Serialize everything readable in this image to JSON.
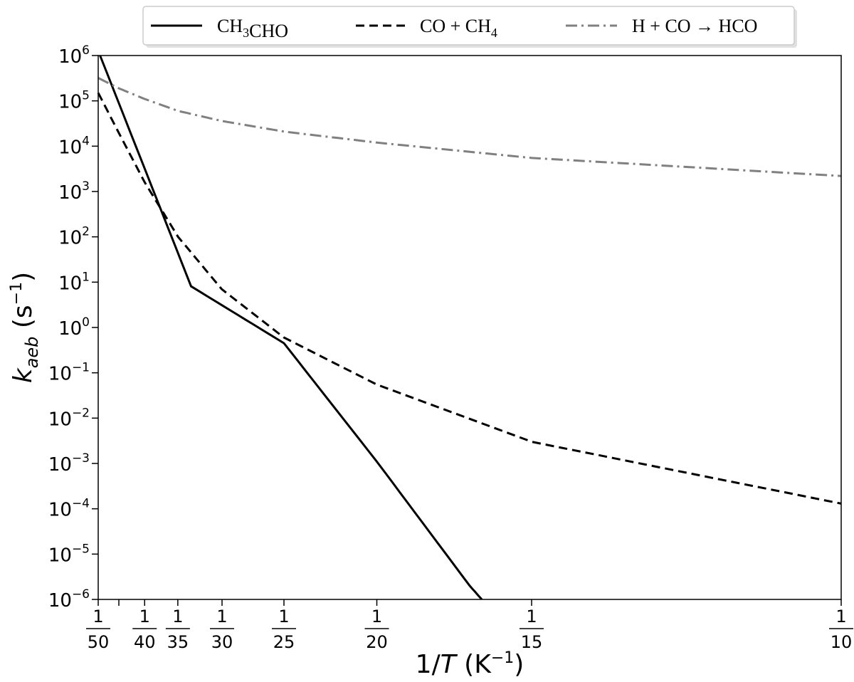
{
  "chart_data": {
    "type": "line",
    "title": "",
    "xlabel": {
      "pre": "1/",
      "var": "T",
      "post": " (K",
      "sup": "−1",
      "close": ")"
    },
    "ylabel": {
      "main": "k",
      "sub": "aeb",
      "unit_pre": " (s",
      "unit_sup": "−1",
      "unit_close": ")"
    },
    "x_scale": "reciprocal",
    "x_unit": "1/T (K^-1)",
    "xlim": [
      0.02,
      0.1
    ],
    "y_scale": "log",
    "ylim": [
      1e-06,
      1000000.0
    ],
    "grid": false,
    "legend_placement": "top-center",
    "x_ticks": [
      {
        "value": 0.02,
        "num": "1",
        "den": "50"
      },
      {
        "value": 0.025,
        "num": "1",
        "den": "40"
      },
      {
        "value": 0.028571,
        "num": "1",
        "den": "35"
      },
      {
        "value": 0.033333,
        "num": "1",
        "den": "30"
      },
      {
        "value": 0.04,
        "num": "1",
        "den": "25"
      },
      {
        "value": 0.05,
        "num": "1",
        "den": "20"
      },
      {
        "value": 0.066667,
        "num": "1",
        "den": "15"
      },
      {
        "value": 0.1,
        "num": "1",
        "den": "10"
      }
    ],
    "x_minor_ticks": [
      0.022222
    ],
    "y_ticks": [
      {
        "value": 1000000.0,
        "base": "10",
        "exp": "6"
      },
      {
        "value": 100000.0,
        "base": "10",
        "exp": "5"
      },
      {
        "value": 10000.0,
        "base": "10",
        "exp": "4"
      },
      {
        "value": 1000.0,
        "base": "10",
        "exp": "3"
      },
      {
        "value": 100.0,
        "base": "10",
        "exp": "2"
      },
      {
        "value": 10.0,
        "base": "10",
        "exp": "1"
      },
      {
        "value": 1.0,
        "base": "10",
        "exp": "0"
      },
      {
        "value": 0.1,
        "base": "10",
        "exp": "−1"
      },
      {
        "value": 0.01,
        "base": "10",
        "exp": "−2"
      },
      {
        "value": 0.001,
        "base": "10",
        "exp": "−3"
      },
      {
        "value": 0.0001,
        "base": "10",
        "exp": "−4"
      },
      {
        "value": 1e-05,
        "base": "10",
        "exp": "−5"
      },
      {
        "value": 1e-06,
        "base": "10",
        "exp": "−6"
      }
    ],
    "series": [
      {
        "legend": [
          {
            "t": "CH"
          },
          {
            "t": "3",
            "sub": true
          },
          {
            "t": "CHO"
          }
        ],
        "color": "#000000",
        "dash": "solid",
        "x": [
          0.0202,
          0.03,
          0.04,
          0.05,
          0.06,
          0.0613
        ],
        "y": [
          1000000.0,
          8.1,
          0.45,
          0.0011,
          2e-06,
          1e-06
        ]
      },
      {
        "legend": [
          {
            "t": "CO + CH"
          },
          {
            "t": "4",
            "sub": true
          }
        ],
        "color": "#000000",
        "dash": "dashed",
        "x": [
          0.02,
          0.0222,
          0.025,
          0.0286,
          0.0333,
          0.04,
          0.05,
          0.0667,
          0.1
        ],
        "y": [
          150000.0,
          20000.0,
          1600.0,
          100.0,
          7.0,
          0.6,
          0.055,
          0.003,
          0.00013
        ]
      },
      {
        "legend": [
          {
            "t": "H + CO → HCO"
          }
        ],
        "color": "#808080",
        "dash": "dashdot",
        "x": [
          0.02,
          0.0222,
          0.025,
          0.0286,
          0.0333,
          0.04,
          0.05,
          0.0667,
          0.1
        ],
        "y": [
          320000.0,
          190000.0,
          110000.0,
          60000.0,
          36000.0,
          21000.0,
          12000.0,
          5500.0,
          2200.0
        ]
      }
    ]
  }
}
